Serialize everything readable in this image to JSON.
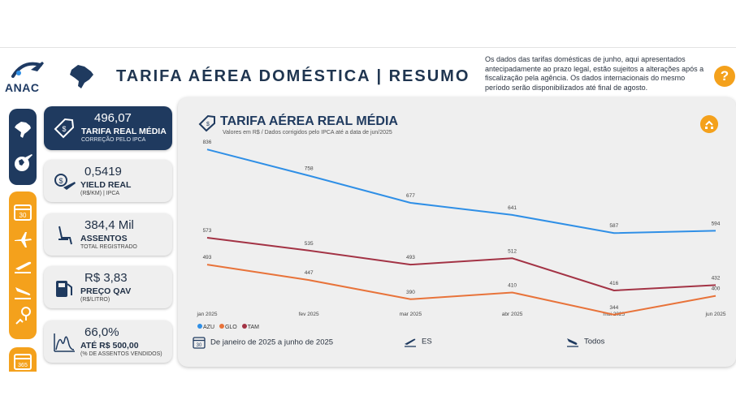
{
  "header": {
    "logo_text": "ANAC",
    "title": "TARIFA AÉREA DOMÉSTICA  |  RESUMO",
    "disclaimer": "Os dados das tarifas domésticas de junho, aqui apresentados antecipadamente ao prazo legal, estão sujeitos a alterações após a fiscalização pela agência. Os dados internacionais do mesmo período serão disponibilizados até final de agosto.",
    "help_label": "?"
  },
  "nav": {
    "icons": [
      "brazil-map-icon",
      "globe-plane-icon",
      "calendar-icon",
      "airplane-icon",
      "takeoff-icon",
      "landing-icon",
      "route-pin-icon",
      "calendar-365-icon"
    ],
    "calendar_day": "30",
    "calendar_year": "365"
  },
  "kpis": [
    {
      "value": "496,07",
      "label": "TARIFA REAL MÉDIA",
      "sub": "CORREÇÃO PELO IPCA",
      "icon": "price-tag-icon"
    },
    {
      "value": "0,5419",
      "label": "YIELD REAL",
      "sub": "(R$/KM) | IPCA",
      "icon": "dollar-plane-icon"
    },
    {
      "value": "384,4 Mil",
      "label": "ASSENTOS",
      "sub": "TOTAL REGISTRADO",
      "icon": "seat-icon"
    },
    {
      "value": "R$ 3,83",
      "label": "PREÇO QAV",
      "sub": "(R$/LITRO)",
      "icon": "fuel-pump-icon"
    },
    {
      "value": "66,0%",
      "label": "ATÉ R$ 500,00",
      "sub": "(% DE ASSENTOS VENDIDOS)",
      "icon": "distribution-icon"
    }
  ],
  "panel": {
    "title": "TARIFA AÉREA REAL MÉDIA",
    "subtitle": "Valores em R$ / Dados corrigidos pelo IPCA até a data de jun/2025"
  },
  "filters": {
    "period_day": "30",
    "period": "De janeiro de 2025 a junho de 2025",
    "origin": "ES",
    "destination": "Todos"
  },
  "chart_data": {
    "type": "line",
    "title": "TARIFA AÉREA REAL MÉDIA",
    "categories": [
      "jan 2025",
      "fev 2025",
      "mar 2025",
      "abr 2025",
      "mai 2025",
      "jun 2025"
    ],
    "series": [
      {
        "name": "AZU",
        "color": "#2f8fe6",
        "values": [
          836,
          758,
          677,
          641,
          587,
          594
        ]
      },
      {
        "name": "GLO",
        "color": "#e8733a",
        "values": [
          493,
          447,
          390,
          410,
          344,
          400
        ]
      },
      {
        "name": "TAM",
        "color": "#a33345",
        "values": [
          573,
          535,
          493,
          512,
          416,
          432
        ]
      }
    ],
    "ylim": [
      300,
      880
    ],
    "grid": false,
    "legend_position": "bottom-left"
  }
}
